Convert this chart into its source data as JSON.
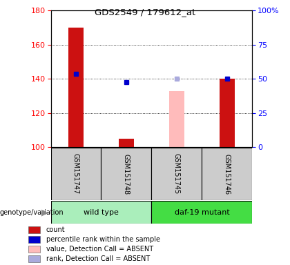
{
  "title": "GDS2549 / 179612_at",
  "samples": [
    "GSM151747",
    "GSM151748",
    "GSM151745",
    "GSM151746"
  ],
  "count_values": [
    170,
    105,
    null,
    140
  ],
  "count_absent_values": [
    null,
    null,
    133,
    null
  ],
  "percentile_values": [
    143,
    138,
    null,
    140
  ],
  "percentile_absent_values": [
    null,
    null,
    140,
    null
  ],
  "ylim_left": [
    100,
    180
  ],
  "ylim_right": [
    0,
    100
  ],
  "yticks_left": [
    100,
    120,
    140,
    160,
    180
  ],
  "yticks_right": [
    0,
    25,
    50,
    75,
    100
  ],
  "ytick_labels_right": [
    "0",
    "25",
    "50",
    "75",
    "100%"
  ],
  "bar_width": 0.3,
  "count_color": "#cc1111",
  "count_absent_color": "#ffbbbb",
  "percentile_color": "#0000cc",
  "percentile_absent_color": "#aaaadd",
  "wt_color": "#aaeebb",
  "daf_color": "#44dd44",
  "sample_bg": "#cccccc",
  "legend_items": [
    {
      "label": "count",
      "color": "#cc1111"
    },
    {
      "label": "percentile rank within the sample",
      "color": "#0000cc"
    },
    {
      "label": "value, Detection Call = ABSENT",
      "color": "#ffbbbb"
    },
    {
      "label": "rank, Detection Call = ABSENT",
      "color": "#aaaadd"
    }
  ]
}
